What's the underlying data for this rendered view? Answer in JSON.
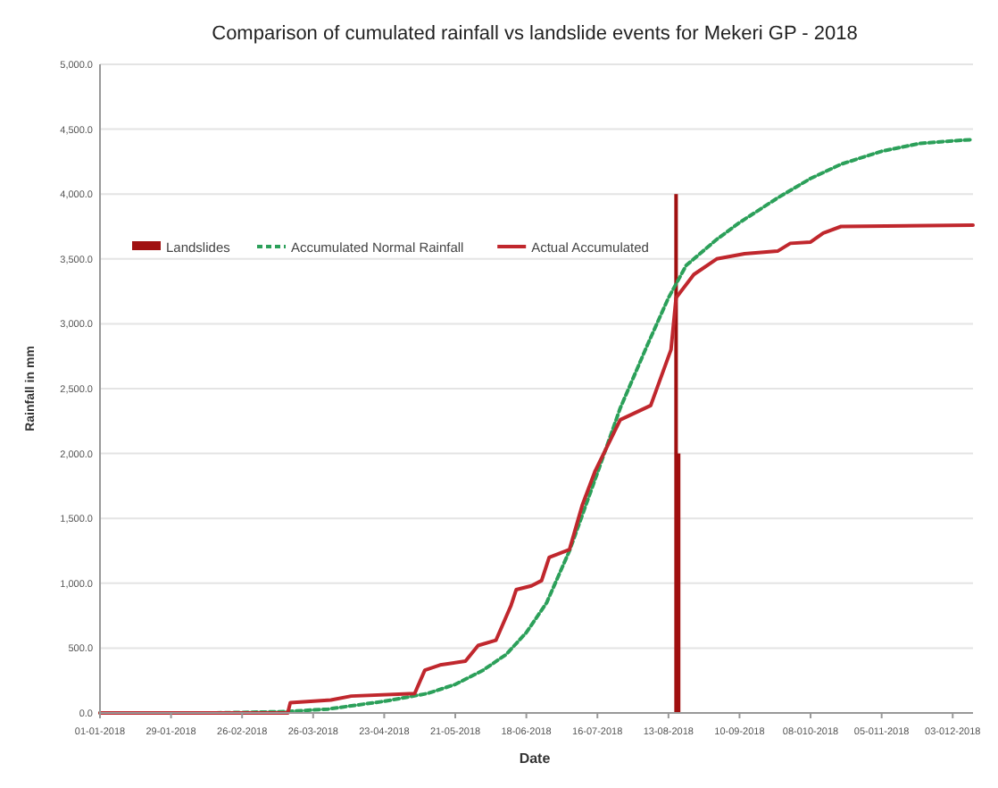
{
  "chart_data": {
    "type": "line",
    "title": "Comparison of cumulated rainfall vs landslide events for Mekeri GP - 2018",
    "xlabel": "Date",
    "ylabel": "Rainfall in mm",
    "xlim": [
      "2018-01-01",
      "2018-12-11"
    ],
    "xticks": [
      {
        "value": "2018-01-01",
        "label": "01-01-2018"
      },
      {
        "value": "2018-01-29",
        "label": "29-01-2018"
      },
      {
        "value": "2018-02-26",
        "label": "26-02-2018"
      },
      {
        "value": "2018-03-26",
        "label": "26-03-2018"
      },
      {
        "value": "2018-04-23",
        "label": "23-04-2018"
      },
      {
        "value": "2018-05-21",
        "label": "21-05-2018"
      },
      {
        "value": "2018-06-18",
        "label": "18-06-2018"
      },
      {
        "value": "2018-07-16",
        "label": "16-07-2018"
      },
      {
        "value": "2018-08-13",
        "label": "13-08-2018"
      },
      {
        "value": "2018-09-10",
        "label": "10-09-2018"
      },
      {
        "value": "2018-10-08",
        "label": "08-010-2018"
      },
      {
        "value": "2018-11-05",
        "label": "05-011-2018"
      },
      {
        "value": "2018-12-03",
        "label": "03-012-2018"
      }
    ],
    "ylim": [
      0,
      5000
    ],
    "yticks": [
      {
        "value": 0,
        "label": "0.0"
      },
      {
        "value": 500,
        "label": "500.0"
      },
      {
        "value": 1000,
        "label": "1,000.0"
      },
      {
        "value": 1500,
        "label": "1,500.0"
      },
      {
        "value": 2000,
        "label": "2,000.0"
      },
      {
        "value": 2500,
        "label": "2,500.0"
      },
      {
        "value": 3000,
        "label": "3,000.0"
      },
      {
        "value": 3500,
        "label": "3,500.0"
      },
      {
        "value": 4000,
        "label": "4,000.0"
      },
      {
        "value": 4500,
        "label": "4,500.0"
      },
      {
        "value": 5000,
        "label": "5,000.0"
      }
    ],
    "grid": "y",
    "legend": "top left",
    "marker": "none",
    "series": [
      {
        "name": "Landslides",
        "type": "bar",
        "color": "#a01010",
        "x": [
          "2018-08-16",
          "2018-08-17"
        ],
        "values": [
          4000,
          2000
        ]
      },
      {
        "name": "Accumulated Normal Rainfall",
        "line_style": "dashed",
        "color": "#2ca05a",
        "x": [
          "2018-01-01",
          "2018-02-15",
          "2018-03-15",
          "2018-04-01",
          "2018-04-23",
          "2018-05-10",
          "2018-05-21",
          "2018-06-01",
          "2018-06-10",
          "2018-06-18",
          "2018-06-26",
          "2018-07-05",
          "2018-07-16",
          "2018-07-25",
          "2018-08-05",
          "2018-08-13",
          "2018-08-20",
          "2018-09-01",
          "2018-09-10",
          "2018-09-25",
          "2018-10-08",
          "2018-10-20",
          "2018-11-05",
          "2018-11-20",
          "2018-12-03",
          "2018-12-11"
        ],
        "values": [
          0,
          0,
          10,
          30,
          90,
          150,
          220,
          330,
          450,
          620,
          850,
          1250,
          1850,
          2350,
          2850,
          3200,
          3450,
          3650,
          3780,
          3970,
          4120,
          4230,
          4330,
          4390,
          4410,
          4420
        ]
      },
      {
        "name": "Actual Accumulated",
        "line_style": "solid",
        "color": "#c0272d",
        "x": [
          "2018-01-01",
          "2018-03-16",
          "2018-03-17",
          "2018-04-02",
          "2018-04-10",
          "2018-05-05",
          "2018-05-09",
          "2018-05-15",
          "2018-05-25",
          "2018-05-30",
          "2018-06-06",
          "2018-06-12",
          "2018-06-14",
          "2018-06-20",
          "2018-06-24",
          "2018-06-27",
          "2018-07-05",
          "2018-07-10",
          "2018-07-15",
          "2018-07-25",
          "2018-08-06",
          "2018-08-14",
          "2018-08-16",
          "2018-08-23",
          "2018-09-01",
          "2018-09-12",
          "2018-09-25",
          "2018-09-30",
          "2018-10-08",
          "2018-10-13",
          "2018-10-20",
          "2018-12-11"
        ],
        "values": [
          0,
          0,
          80,
          100,
          130,
          150,
          330,
          370,
          400,
          520,
          560,
          830,
          950,
          980,
          1020,
          1200,
          1260,
          1600,
          1860,
          2260,
          2370,
          2800,
          3200,
          3380,
          3500,
          3540,
          3560,
          3620,
          3630,
          3700,
          3750,
          3760
        ]
      }
    ]
  }
}
